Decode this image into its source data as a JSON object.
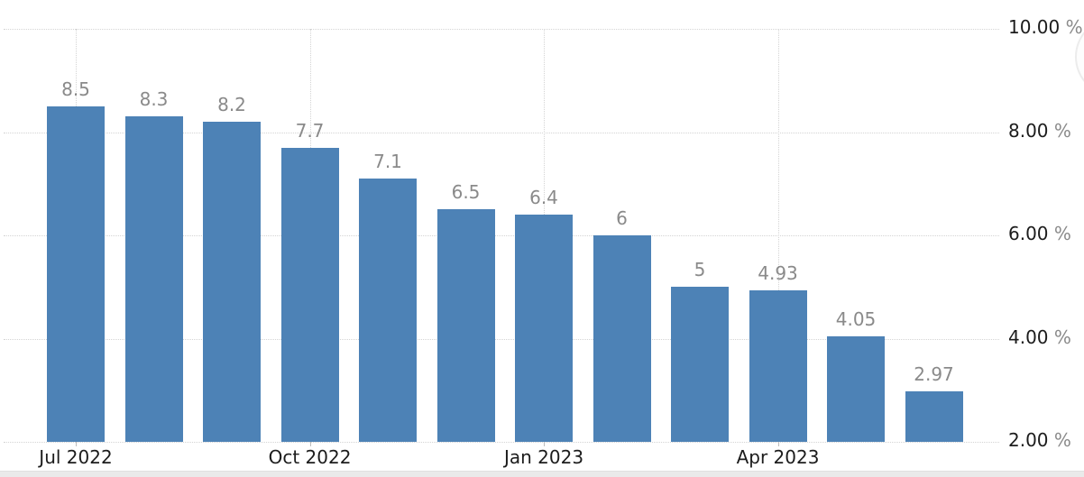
{
  "chart_data": {
    "type": "bar",
    "title": "",
    "values": [
      8.5,
      8.3,
      8.2,
      7.7,
      7.1,
      6.5,
      6.4,
      6,
      5,
      4.93,
      4.05,
      2.97
    ],
    "bar_labels": [
      "8.5",
      "8.3",
      "8.2",
      "7.7",
      "7.1",
      "6.5",
      "6.4",
      "6",
      "5",
      "4.93",
      "4.05",
      "2.97"
    ],
    "x_ticks": [
      {
        "bar_index": 0,
        "label": "Jul 2022"
      },
      {
        "bar_index": 3,
        "label": "Oct 2022"
      },
      {
        "bar_index": 6,
        "label": "Jan 2023"
      },
      {
        "bar_index": 9,
        "label": "Apr 2023"
      }
    ],
    "y_ticks": [
      {
        "value": 10,
        "label": "10.00"
      },
      {
        "value": 8,
        "label": "8.00"
      },
      {
        "value": 6,
        "label": "6.00"
      },
      {
        "value": 4,
        "label": "4.00"
      },
      {
        "value": 2,
        "label": "2.00"
      }
    ],
    "y_unit": "%",
    "ylim": [
      2,
      10
    ],
    "grid": "dotted horizontal and vertical at labeled x positions",
    "legend": "none",
    "y_axis_side": "right",
    "bar_color": "#4d82b6"
  },
  "colors": {
    "bar": "#4d82b6",
    "gridline": "#d4d4d4",
    "bar_label_text": "#8a8a8a",
    "axis_text": "#1c1c1c",
    "unit_text": "#8a8a8a",
    "bottom_strip": "#eaeaea",
    "background": "#ffffff"
  }
}
